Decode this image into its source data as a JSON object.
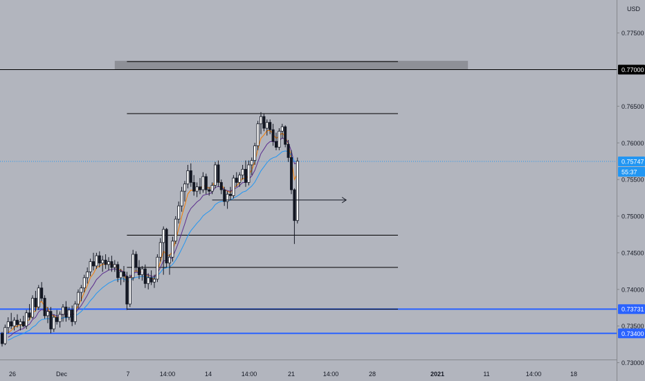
{
  "chart_data": {
    "type": "candlestick",
    "currency": "USD",
    "price_scale": {
      "ylim": [
        0.7275,
        0.7795
      ],
      "ticks": [
        "0.77500",
        "0.77000",
        "0.76500",
        "0.76000",
        "0.75500",
        "0.75000",
        "0.74500",
        "0.74000",
        "0.73500",
        "0.73000"
      ]
    },
    "time_axis": {
      "labels": [
        "26",
        "Dec",
        "7",
        "14:00",
        "14",
        "14:00",
        "21",
        "14:00",
        "28",
        "2021",
        "11",
        "14:00",
        "18"
      ],
      "bold": [
        "2021"
      ]
    },
    "price_badges": [
      {
        "label": "0.77000",
        "value": 0.77,
        "bg": "#000000",
        "fg": "#ffffff"
      },
      {
        "label": "0.75747",
        "value": 0.75747,
        "bg": "#2196f3",
        "fg": "#ffffff"
      },
      {
        "label": "55:37",
        "value": 0.75605,
        "bg": "#2196f3",
        "fg": "#ffffff"
      },
      {
        "label": "0.73731",
        "value": 0.73731,
        "bg": "#2962ff",
        "fg": "#ffffff"
      },
      {
        "label": "0.73400",
        "value": 0.734,
        "bg": "#2962ff",
        "fg": "#ffffff"
      }
    ],
    "horizontal_levels": [
      {
        "value": 0.77,
        "color": "#000000",
        "scope": "full"
      },
      {
        "value": 0.73731,
        "color": "#2962ff",
        "scope": "full"
      },
      {
        "value": 0.734,
        "color": "#2962ff",
        "scope": "full"
      },
      {
        "value": 0.75747,
        "color": "#2196f3",
        "scope": "last-price-dotted"
      }
    ],
    "drawn_segments": [
      {
        "price": 0.7711,
        "from_bar": 41,
        "to_bar": 130,
        "color": "#000000"
      },
      {
        "price": 0.764,
        "from_bar": 41,
        "to_bar": 130,
        "color": "#000000"
      },
      {
        "price": 0.7474,
        "from_bar": 41,
        "to_bar": 130,
        "color": "#000000"
      },
      {
        "price": 0.743,
        "from_bar": 41,
        "to_bar": 130,
        "color": "#000000"
      },
      {
        "price": 0.73731,
        "from_bar": 41,
        "to_bar": 130,
        "color": "#000000"
      }
    ],
    "arrow": {
      "price": 0.7522,
      "from_bar": 69,
      "to_bar": 113
    },
    "zone": {
      "low": 0.77,
      "high": 0.7712,
      "from_bar": 37,
      "to_bar": 153,
      "color": "#8e9097"
    },
    "candles": [
      [
        0.734,
        0.7342,
        0.7322,
        0.7326
      ],
      [
        0.7326,
        0.7352,
        0.7324,
        0.7348
      ],
      [
        0.7348,
        0.7362,
        0.734,
        0.7356
      ],
      [
        0.7356,
        0.7368,
        0.7346,
        0.735
      ],
      [
        0.735,
        0.7362,
        0.7344,
        0.7358
      ],
      [
        0.7358,
        0.7366,
        0.7348,
        0.7352
      ],
      [
        0.7352,
        0.736,
        0.7344,
        0.7356
      ],
      [
        0.7356,
        0.7364,
        0.7348,
        0.735
      ],
      [
        0.735,
        0.7372,
        0.7346,
        0.7368
      ],
      [
        0.7368,
        0.738,
        0.7358,
        0.7362
      ],
      [
        0.7362,
        0.7392,
        0.736,
        0.7388
      ],
      [
        0.7388,
        0.7398,
        0.737,
        0.7376
      ],
      [
        0.7376,
        0.7406,
        0.7372,
        0.7402
      ],
      [
        0.7402,
        0.741,
        0.7384,
        0.7388
      ],
      [
        0.7388,
        0.7392,
        0.736,
        0.7364
      ],
      [
        0.7364,
        0.7376,
        0.7354,
        0.737
      ],
      [
        0.737,
        0.7376,
        0.734,
        0.7346
      ],
      [
        0.7346,
        0.7366,
        0.7342,
        0.7362
      ],
      [
        0.7362,
        0.7372,
        0.7352,
        0.7356
      ],
      [
        0.7356,
        0.737,
        0.7348,
        0.7366
      ],
      [
        0.7366,
        0.738,
        0.7356,
        0.7376
      ],
      [
        0.7376,
        0.7384,
        0.7356,
        0.7362
      ],
      [
        0.7362,
        0.7376,
        0.7358,
        0.7372
      ],
      [
        0.7372,
        0.7378,
        0.735,
        0.7356
      ],
      [
        0.7356,
        0.7384,
        0.7352,
        0.738
      ],
      [
        0.738,
        0.74,
        0.7374,
        0.7396
      ],
      [
        0.7396,
        0.7406,
        0.7384,
        0.7402
      ],
      [
        0.7402,
        0.742,
        0.7396,
        0.7416
      ],
      [
        0.7416,
        0.743,
        0.7408,
        0.7424
      ],
      [
        0.7424,
        0.7442,
        0.7418,
        0.7438
      ],
      [
        0.7438,
        0.745,
        0.7426,
        0.7432
      ],
      [
        0.7432,
        0.745,
        0.7428,
        0.7446
      ],
      [
        0.7446,
        0.7452,
        0.743,
        0.7436
      ],
      [
        0.7436,
        0.7446,
        0.7424,
        0.744
      ],
      [
        0.744,
        0.7448,
        0.7428,
        0.7434
      ],
      [
        0.7434,
        0.7444,
        0.7426,
        0.7438
      ],
      [
        0.7438,
        0.7446,
        0.7424,
        0.743
      ],
      [
        0.743,
        0.744,
        0.7424,
        0.7434
      ],
      [
        0.7434,
        0.7438,
        0.741,
        0.7416
      ],
      [
        0.7416,
        0.7428,
        0.7406,
        0.7424
      ],
      [
        0.7424,
        0.7432,
        0.741,
        0.7418
      ],
      [
        0.7418,
        0.7424,
        0.7372,
        0.738
      ],
      [
        0.738,
        0.742,
        0.7376,
        0.7416
      ],
      [
        0.7416,
        0.7454,
        0.7412,
        0.7448
      ],
      [
        0.7448,
        0.7452,
        0.7424,
        0.743
      ],
      [
        0.743,
        0.744,
        0.7414,
        0.742
      ],
      [
        0.742,
        0.7432,
        0.7412,
        0.7428
      ],
      [
        0.7428,
        0.7434,
        0.7402,
        0.7408
      ],
      [
        0.7408,
        0.7422,
        0.74,
        0.7416
      ],
      [
        0.7416,
        0.7426,
        0.7406,
        0.741
      ],
      [
        0.741,
        0.742,
        0.7402,
        0.7414
      ],
      [
        0.7414,
        0.7448,
        0.741,
        0.7444
      ],
      [
        0.7444,
        0.747,
        0.7438,
        0.7464
      ],
      [
        0.7464,
        0.7486,
        0.742,
        0.7482
      ],
      [
        0.7482,
        0.7484,
        0.743,
        0.7436
      ],
      [
        0.7436,
        0.7448,
        0.742,
        0.7444
      ],
      [
        0.7444,
        0.7472,
        0.7438,
        0.7466
      ],
      [
        0.7466,
        0.75,
        0.7462,
        0.7496
      ],
      [
        0.7496,
        0.752,
        0.749,
        0.7514
      ],
      [
        0.7514,
        0.754,
        0.7506,
        0.7534
      ],
      [
        0.7534,
        0.7548,
        0.752,
        0.7544
      ],
      [
        0.7544,
        0.757,
        0.7538,
        0.7562
      ],
      [
        0.7562,
        0.7572,
        0.754,
        0.7546
      ],
      [
        0.7546,
        0.7556,
        0.7528,
        0.7534
      ],
      [
        0.7534,
        0.7546,
        0.7526,
        0.754
      ],
      [
        0.754,
        0.7552,
        0.753,
        0.7536
      ],
      [
        0.7536,
        0.756,
        0.7532,
        0.7554
      ],
      [
        0.7554,
        0.7558,
        0.753,
        0.7536
      ],
      [
        0.7536,
        0.754,
        0.7528,
        0.7534
      ],
      [
        0.7534,
        0.7546,
        0.753,
        0.7542
      ],
      [
        0.7542,
        0.7574,
        0.7538,
        0.757
      ],
      [
        0.757,
        0.7576,
        0.754,
        0.7546
      ],
      [
        0.7546,
        0.755,
        0.753,
        0.7536
      ],
      [
        0.7536,
        0.754,
        0.7514,
        0.752
      ],
      [
        0.752,
        0.7534,
        0.751,
        0.753
      ],
      [
        0.753,
        0.754,
        0.7522,
        0.7528
      ],
      [
        0.7528,
        0.7556,
        0.7524,
        0.7552
      ],
      [
        0.7552,
        0.756,
        0.754,
        0.7546
      ],
      [
        0.7546,
        0.756,
        0.754,
        0.7556
      ],
      [
        0.7556,
        0.757,
        0.755,
        0.7564
      ],
      [
        0.7564,
        0.7576,
        0.754,
        0.7546
      ],
      [
        0.7546,
        0.7576,
        0.7542,
        0.757
      ],
      [
        0.757,
        0.758,
        0.7556,
        0.7576
      ],
      [
        0.7576,
        0.76,
        0.757,
        0.7596
      ],
      [
        0.7596,
        0.763,
        0.759,
        0.7626
      ],
      [
        0.7626,
        0.7642,
        0.7612,
        0.7636
      ],
      [
        0.7636,
        0.764,
        0.7616,
        0.762
      ],
      [
        0.762,
        0.7632,
        0.761,
        0.7628
      ],
      [
        0.7628,
        0.7632,
        0.7612,
        0.7618
      ],
      [
        0.7618,
        0.7626,
        0.7596,
        0.7602
      ],
      [
        0.7602,
        0.7614,
        0.759,
        0.7594
      ],
      [
        0.7594,
        0.762,
        0.759,
        0.7616
      ],
      [
        0.7616,
        0.7626,
        0.7606,
        0.7622
      ],
      [
        0.7622,
        0.7624,
        0.7594,
        0.7598
      ],
      [
        0.7598,
        0.7604,
        0.7574,
        0.758
      ],
      [
        0.758,
        0.759,
        0.753,
        0.7536
      ],
      [
        0.7536,
        0.7538,
        0.7462,
        0.7494
      ],
      [
        0.7494,
        0.758,
        0.749,
        0.7575
      ]
    ],
    "moving_averages": [
      {
        "period": 5,
        "color": "#f57c00"
      },
      {
        "period": 10,
        "color": "#5b2d8e"
      },
      {
        "period": 20,
        "color": "#2196f3"
      }
    ]
  }
}
